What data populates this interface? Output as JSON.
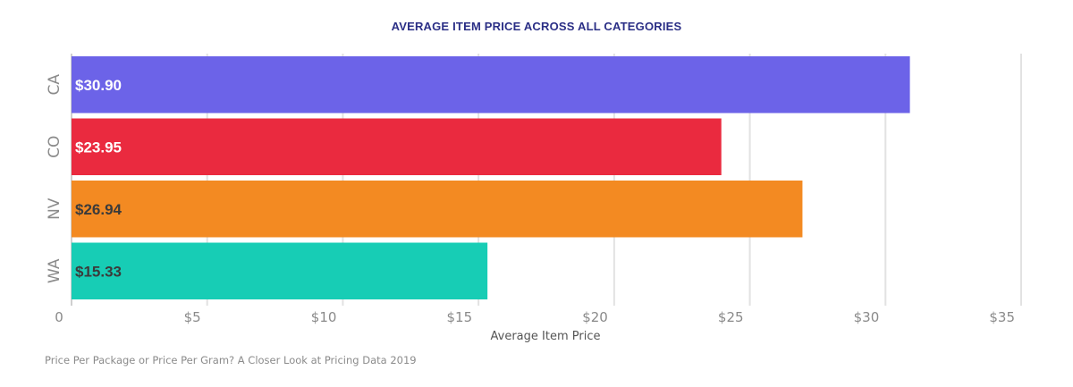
{
  "chart_data": {
    "type": "bar",
    "orientation": "horizontal",
    "title": "AVERAGE ITEM PRICE ACROSS ALL CATEGORIES",
    "xlabel": "Average Item Price",
    "ylabel": "",
    "categories": [
      "CA",
      "CO",
      "NV",
      "WA"
    ],
    "values": [
      30.9,
      23.95,
      26.94,
      15.33
    ],
    "data_labels": [
      "$30.90",
      "$23.95",
      "$26.94",
      "$15.33"
    ],
    "colors": [
      "#6c63e8",
      "#ea2a3f",
      "#f38a22",
      "#17cdb5"
    ],
    "label_colors": [
      "#ffffff",
      "#ffffff",
      "#3b3b3b",
      "#3b3b3b"
    ],
    "xlim": [
      0,
      35
    ],
    "x_ticks": [
      0,
      5,
      10,
      15,
      20,
      25,
      30,
      35
    ],
    "x_tick_labels": [
      "0",
      "$5",
      "$10",
      "$15",
      "$20",
      "$25",
      "$30",
      "$35"
    ],
    "grid": true
  },
  "footer": {
    "source": "Price Per Package or Price Per Gram? A Closer Look at Pricing Data 2019"
  }
}
